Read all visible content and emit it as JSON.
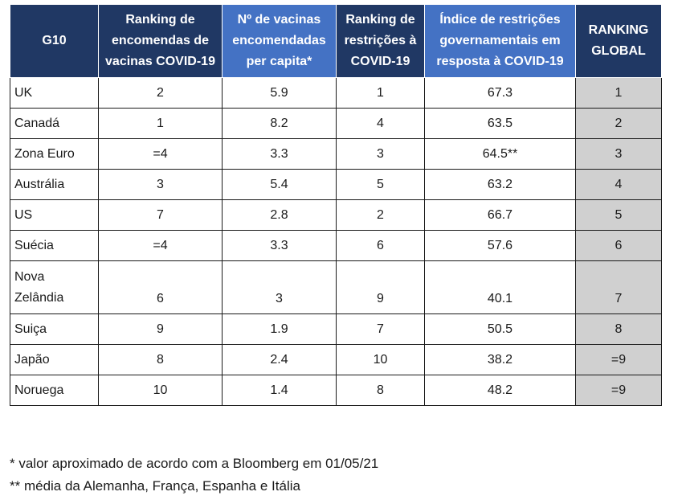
{
  "table": {
    "headers": [
      "G10",
      "Ranking de encomendas de vacinas COVID-19",
      "Nº de vacinas encomendadas per capita*",
      "Ranking de restrições à COVID-19",
      "Índice de restrições governamentais em resposta à COVID-19",
      "RANKING GLOBAL"
    ],
    "rows": [
      [
        "UK",
        "2",
        "5.9",
        "1",
        "67.3",
        "1"
      ],
      [
        "Canadá",
        "1",
        "8.2",
        "4",
        "63.5",
        "2"
      ],
      [
        "Zona Euro",
        "=4",
        "3.3",
        "3",
        "64.5**",
        "3"
      ],
      [
        "Austrália",
        "3",
        "5.4",
        "5",
        "63.2",
        "4"
      ],
      [
        "US",
        "7",
        "2.8",
        "2",
        "66.7",
        "5"
      ],
      [
        "Suécia",
        "=4",
        "3.3",
        "6",
        "57.6",
        "6"
      ],
      [
        "Nova Zelândia",
        "6",
        "3",
        "9",
        "40.1",
        "7"
      ],
      [
        "Suiça",
        "9",
        "1.9",
        "7",
        "50.5",
        "8"
      ],
      [
        "Japão",
        "8",
        "2.4",
        "10",
        "38.2",
        "=9"
      ],
      [
        "Noruega",
        "10",
        "1.4",
        "8",
        "48.2",
        "=9"
      ]
    ]
  },
  "notes": {
    "note1": "* valor aproximado de acordo com a Bloomberg em 01/05/21",
    "note2": "** média da Alemanha, França, Espanha e Itália"
  }
}
